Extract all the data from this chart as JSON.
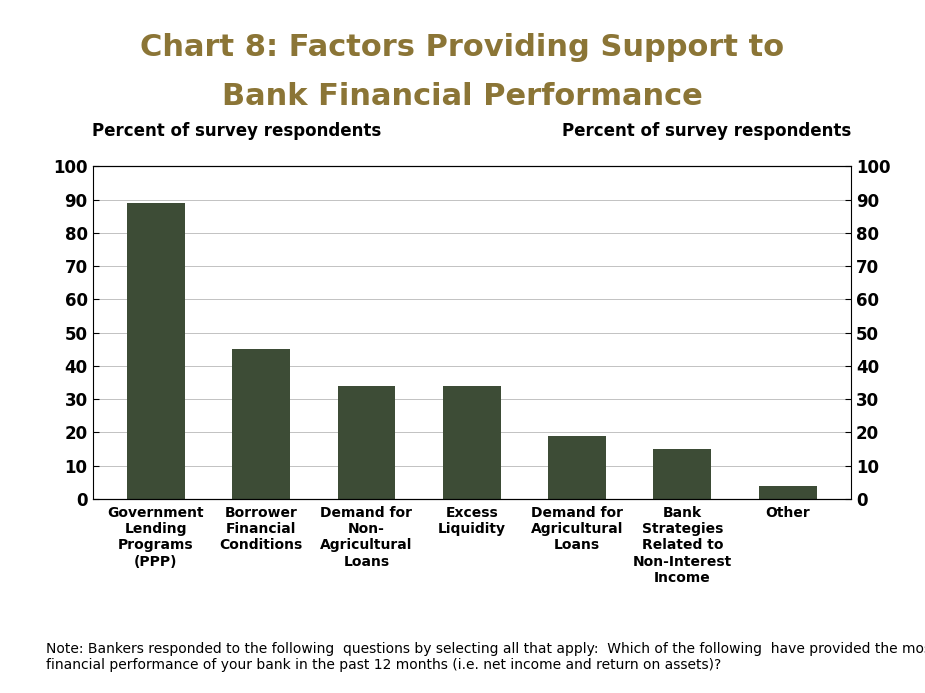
{
  "title_line1": "Chart 8: Factors Providing Support to",
  "title_line2": "Bank Financial Performance",
  "title_color": "#8B7536",
  "title_fontsize": 22,
  "ylabel_left": "Percent of survey respondents",
  "ylabel_right": "Percent of survey respondents",
  "categories": [
    "Government\nLending\nPrograms\n(PPP)",
    "Borrower\nFinancial\nConditions",
    "Demand for\nNon-\nAgricultural\nLoans",
    "Excess\nLiquidity",
    "Demand for\nAgricultural\nLoans",
    "Bank\nStrategies\nRelated to\nNon-Interest\nIncome",
    "Other"
  ],
  "values": [
    89,
    45,
    34,
    34,
    19,
    15,
    4
  ],
  "bar_color": "#3D4C36",
  "ylim": [
    0,
    100
  ],
  "yticks": [
    0,
    10,
    20,
    30,
    40,
    50,
    60,
    70,
    80,
    90,
    100
  ],
  "background_color": "#FFFFFF",
  "note_text": "Note: Bankers responded to the following  questions by selecting all that apply:  Which of the following  have provided the most support to the\nfinancial performance of your bank in the past 12 months (i.e. net income and return on assets)?",
  "note_fontsize": 10,
  "ylabel_fontsize": 12,
  "tick_fontsize": 12,
  "category_fontsize": 10,
  "bar_width": 0.55
}
